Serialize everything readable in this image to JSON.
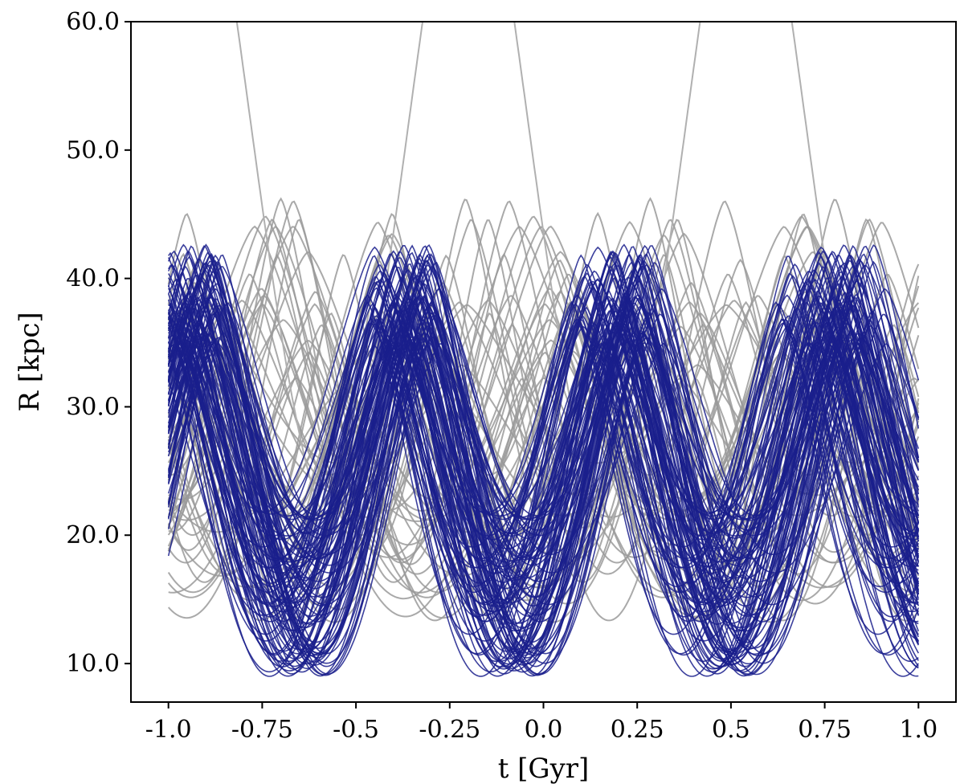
{
  "chart_data": {
    "type": "line",
    "xlabel": "t [Gyr]",
    "ylabel": "R [kpc]",
    "xlim": [
      -1.1,
      1.1
    ],
    "ylim": [
      7.0,
      60.0
    ],
    "x_ticks": [
      -1.0,
      -0.75,
      -0.5,
      -0.25,
      0.0,
      0.25,
      0.5,
      0.75,
      1.0
    ],
    "x_tick_labels": [
      "-1.0",
      "-0.75",
      "-0.5",
      "-0.25",
      "0.0",
      "0.25",
      "0.5",
      "0.75",
      "1.0"
    ],
    "y_ticks": [
      10.0,
      20.0,
      30.0,
      40.0,
      50.0,
      60.0
    ],
    "y_tick_labels": [
      "10.0",
      "20.0",
      "30.0",
      "40.0",
      "50.0",
      "60.0"
    ],
    "grid": false,
    "legend": "none",
    "series_groups": [
      {
        "group": "gray",
        "color": "#9a9a9a",
        "count": 45,
        "typical_period_gyr": 0.6,
        "R_min_range": [
          12,
          26
        ],
        "R_max_range": [
          30,
          47
        ],
        "highlighted_orbit": {
          "color": "#b0b0b0",
          "peaks_at_gyr": [
            -0.6,
            0.2,
            0.9
          ],
          "R_min": 20,
          "R_max": 75
        }
      },
      {
        "group": "blue",
        "color": "#1a1f8c",
        "count": 110,
        "period_gyr": 0.57,
        "peaks_at_gyr": [
          -0.66,
          -0.06,
          0.54
        ],
        "troughs_at_gyr": [
          -0.92,
          -0.34,
          0.23,
          0.8
        ],
        "R_min_range": [
          9,
          22
        ],
        "R_max_range": [
          30.5,
          42.7
        ]
      }
    ]
  }
}
